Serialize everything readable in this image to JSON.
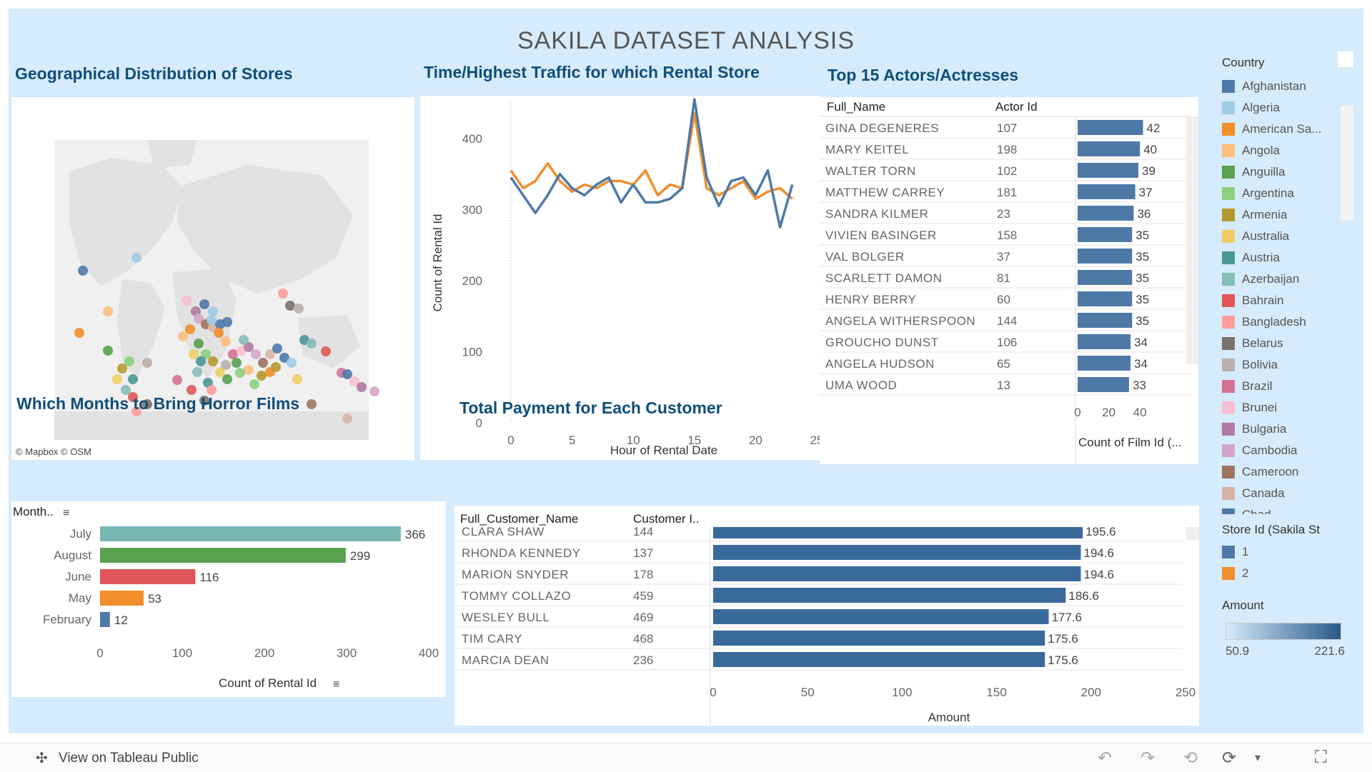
{
  "main_title": "SAKILA DATASET ANALYSIS",
  "map": {
    "title": "Geographical Distribution of Stores",
    "attribution": "© Mapbox  © OSM"
  },
  "traffic": {
    "title": "Time/Highest Traffic for which Rental Store"
  },
  "actors": {
    "title": "Top 15 Actors/Actresses",
    "col1": "Full_Name",
    "col2": "Actor Id"
  },
  "horror": {
    "title": "Which Months to Bring Horror Films",
    "header": "Month.."
  },
  "payment": {
    "title": "Total Payment for Each Customer",
    "col1": "Full_Customer_Name",
    "col2": "Customer I.."
  },
  "legend": {
    "country_title": "Country",
    "countries": [
      {
        "name": "Afghanistan",
        "color": "#4e79a7"
      },
      {
        "name": "Algeria",
        "color": "#a0cbe8"
      },
      {
        "name": "American Sa...",
        "color": "#f28e2b"
      },
      {
        "name": "Angola",
        "color": "#ffbe7d"
      },
      {
        "name": "Anguilla",
        "color": "#59a14f"
      },
      {
        "name": "Argentina",
        "color": "#8cd17d"
      },
      {
        "name": "Armenia",
        "color": "#b6992d"
      },
      {
        "name": "Australia",
        "color": "#f1ce63"
      },
      {
        "name": "Austria",
        "color": "#499894"
      },
      {
        "name": "Azerbaijan",
        "color": "#86bcb6"
      },
      {
        "name": "Bahrain",
        "color": "#e15759"
      },
      {
        "name": "Bangladesh",
        "color": "#ff9d9a"
      },
      {
        "name": "Belarus",
        "color": "#79706e"
      },
      {
        "name": "Bolivia",
        "color": "#bab0ac"
      },
      {
        "name": "Brazil",
        "color": "#d37295"
      },
      {
        "name": "Brunei",
        "color": "#fabfd2"
      },
      {
        "name": "Bulgaria",
        "color": "#b07aa1"
      },
      {
        "name": "Cambodia",
        "color": "#d4a6c8"
      },
      {
        "name": "Cameroon",
        "color": "#9d7660"
      },
      {
        "name": "Canada",
        "color": "#d7b5a6"
      },
      {
        "name": "Chad",
        "color": "#4e79a7"
      }
    ],
    "store_title": "Store Id (Sakila St",
    "stores": [
      {
        "name": "1",
        "color": "#4e79a7"
      },
      {
        "name": "2",
        "color": "#f28e2b"
      }
    ],
    "amount_title": "Amount",
    "amount_min": "50.9",
    "amount_max": "221.6"
  },
  "footer": {
    "view_label": "View on Tableau Public"
  },
  "chart_data": [
    {
      "type": "line",
      "xlabel": "Hour of Rental Date",
      "ylabel": "Count of Rental Id",
      "xlim": [
        0,
        25
      ],
      "ylim": [
        0,
        450
      ],
      "xticks": [
        0,
        5,
        10,
        15,
        20,
        25
      ],
      "yticks": [
        0,
        100,
        200,
        300,
        400
      ],
      "x": [
        0,
        1,
        2,
        3,
        4,
        5,
        6,
        7,
        8,
        9,
        10,
        11,
        12,
        13,
        14,
        15,
        16,
        17,
        18,
        19,
        20,
        21,
        22,
        23
      ],
      "series": [
        {
          "name": "1",
          "color": "#4e79a7",
          "values": [
            345,
            320,
            295,
            320,
            350,
            330,
            320,
            335,
            345,
            310,
            335,
            310,
            310,
            315,
            330,
            455,
            345,
            305,
            340,
            345,
            320,
            355,
            275,
            335
          ]
        },
        {
          "name": "2",
          "color": "#f28e2b",
          "values": [
            355,
            330,
            340,
            365,
            340,
            325,
            335,
            330,
            340,
            340,
            335,
            355,
            320,
            335,
            330,
            435,
            330,
            320,
            330,
            340,
            315,
            325,
            330,
            315
          ]
        }
      ]
    },
    {
      "type": "bar",
      "orientation": "horizontal",
      "xlabel": "Count of Film Id (...",
      "xticks": [
        0,
        20,
        40
      ],
      "xlim": [
        0,
        50
      ],
      "rows": [
        {
          "name": "GINA  DEGENERES",
          "id": "107",
          "value": 42
        },
        {
          "name": "MARY  KEITEL",
          "id": "198",
          "value": 40
        },
        {
          "name": "WALTER  TORN",
          "id": "102",
          "value": 39
        },
        {
          "name": "MATTHEW  CARREY",
          "id": "181",
          "value": 37
        },
        {
          "name": "SANDRA  KILMER",
          "id": "23",
          "value": 36
        },
        {
          "name": "VIVIEN  BASINGER",
          "id": "158",
          "value": 35
        },
        {
          "name": "VAL  BOLGER",
          "id": "37",
          "value": 35
        },
        {
          "name": "SCARLETT  DAMON",
          "id": "81",
          "value": 35
        },
        {
          "name": "HENRY  BERRY",
          "id": "60",
          "value": 35
        },
        {
          "name": "ANGELA  WITHERSPOON",
          "id": "144",
          "value": 35
        },
        {
          "name": "GROUCHO  DUNST",
          "id": "106",
          "value": 34
        },
        {
          "name": "ANGELA  HUDSON",
          "id": "65",
          "value": 34
        },
        {
          "name": "UMA  WOOD",
          "id": "13",
          "value": 33
        }
      ]
    },
    {
      "type": "bar",
      "orientation": "horizontal",
      "xlabel": "Count of Rental Id",
      "xticks": [
        0,
        100,
        200,
        300,
        400
      ],
      "xlim": [
        0,
        400
      ],
      "categories": [
        "July",
        "August",
        "June",
        "May",
        "February"
      ],
      "values": [
        366,
        299,
        116,
        53,
        12
      ],
      "colors": [
        "#76b7b2",
        "#59a14f",
        "#e15759",
        "#f28e2b",
        "#4e79a7"
      ]
    },
    {
      "type": "bar",
      "orientation": "horizontal",
      "xlabel": "Amount",
      "xticks": [
        0,
        50,
        100,
        150,
        200,
        250
      ],
      "xlim": [
        0,
        250
      ],
      "rows": [
        {
          "name": "CLARA  SHAW",
          "id": "144",
          "value": 195.6
        },
        {
          "name": "RHONDA  KENNEDY",
          "id": "137",
          "value": 194.6
        },
        {
          "name": "MARION  SNYDER",
          "id": "178",
          "value": 194.6
        },
        {
          "name": "TOMMY  COLLAZO",
          "id": "459",
          "value": 186.6
        },
        {
          "name": "WESLEY  BULL",
          "id": "469",
          "value": 177.6
        },
        {
          "name": "TIM  CARY",
          "id": "468",
          "value": 175.6
        },
        {
          "name": "MARCIA  DEAN",
          "id": "236",
          "value": 175.6
        }
      ]
    }
  ]
}
